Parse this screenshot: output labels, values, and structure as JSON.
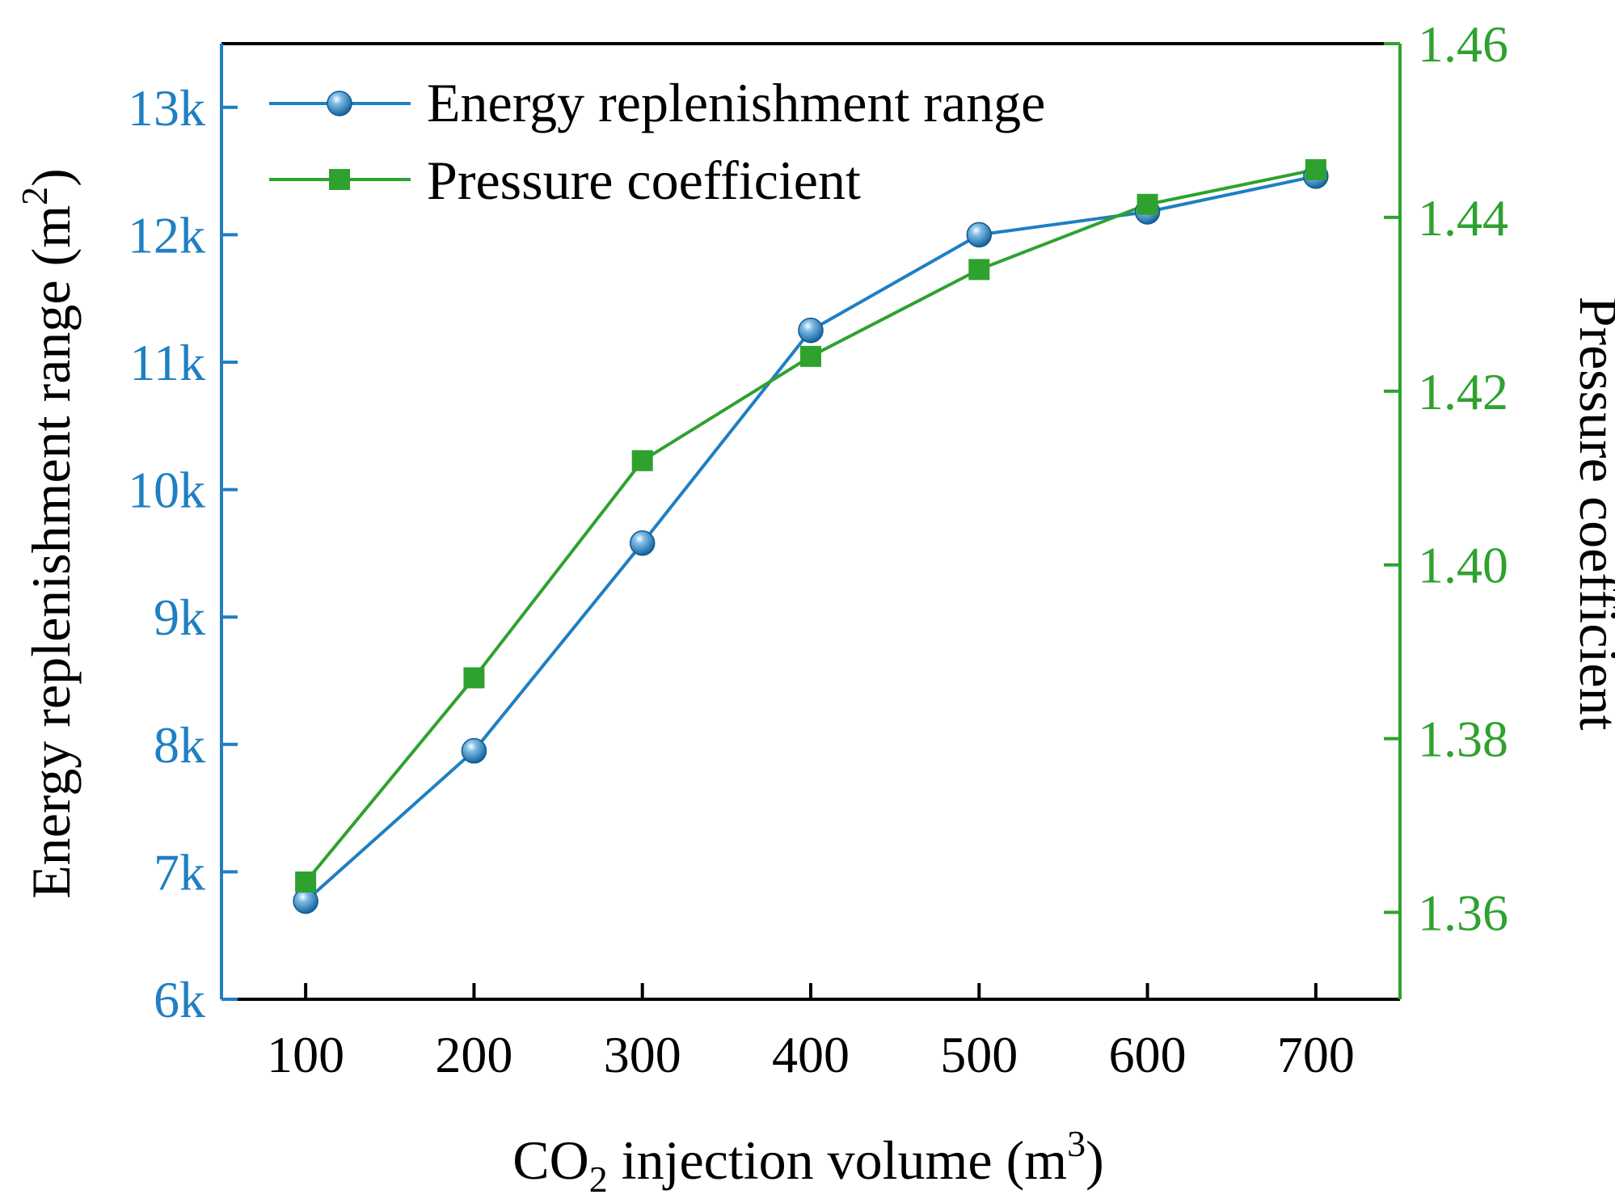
{
  "colors": {
    "left_axis": "#1f7fc2",
    "right_axis": "#2fa12f",
    "frame": "#000000"
  },
  "chart_data": {
    "type": "line",
    "title": "",
    "x": [
      100,
      200,
      300,
      400,
      500,
      600,
      700
    ],
    "x_tick_labels": [
      "100",
      "200",
      "300",
      "400",
      "500",
      "600",
      "700"
    ],
    "xlim": [
      50,
      750
    ],
    "xlabel": {
      "prefix": "CO",
      "subscript": "2",
      "middle": " injection volume (m",
      "superscript": "3",
      "suffix": ")"
    },
    "ylabel_left": {
      "prefix": "Energy replenishment range (m",
      "superscript": "2",
      "suffix": ")"
    },
    "ylabel_right": "Pressure coefficient",
    "ylim_left": [
      6000,
      13500
    ],
    "ylim_right": [
      1.35,
      1.46
    ],
    "yticks_left": [
      {
        "value": 6000,
        "label": "6k"
      },
      {
        "value": 7000,
        "label": "7k"
      },
      {
        "value": 8000,
        "label": "8k"
      },
      {
        "value": 9000,
        "label": "9k"
      },
      {
        "value": 10000,
        "label": "10k"
      },
      {
        "value": 11000,
        "label": "11k"
      },
      {
        "value": 12000,
        "label": "12k"
      },
      {
        "value": 13000,
        "label": "13k"
      }
    ],
    "yticks_right": [
      {
        "value": 1.36,
        "label": "1.36"
      },
      {
        "value": 1.38,
        "label": "1.38"
      },
      {
        "value": 1.4,
        "label": "1.40"
      },
      {
        "value": 1.42,
        "label": "1.42"
      },
      {
        "value": 1.44,
        "label": "1.44"
      },
      {
        "value": 1.46,
        "label": "1.46"
      }
    ],
    "series": [
      {
        "name": "Energy replenishment range",
        "axis": "left",
        "marker": "sphere",
        "color": "#1f7fc2",
        "values": [
          6770,
          7950,
          9580,
          11250,
          12000,
          12180,
          12460
        ]
      },
      {
        "name": "Pressure coefficient",
        "axis": "right",
        "marker": "square",
        "color": "#2fa12f",
        "values": [
          1.3635,
          1.387,
          1.412,
          1.424,
          1.434,
          1.4415,
          1.4455
        ]
      }
    ],
    "legend_position": "top-left",
    "grid": false
  }
}
